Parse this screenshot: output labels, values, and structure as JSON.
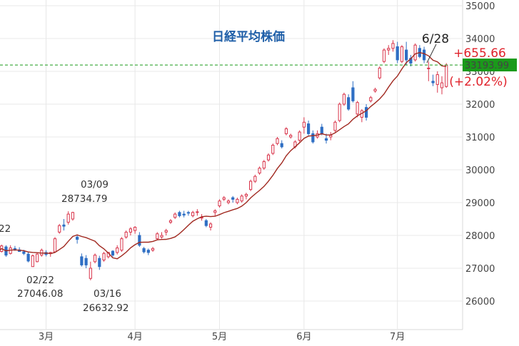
{
  "chart_data": {
    "type": "candlestick",
    "title": "日経平均株価",
    "xlabel": "",
    "ylabel": "",
    "ylim": [
      25100,
      35100
    ],
    "y_ticks": [
      26000,
      27000,
      28000,
      29000,
      30000,
      31000,
      32000,
      33000,
      34000,
      35000
    ],
    "x_ticks": [
      {
        "label": "3月",
        "idx": 11
      },
      {
        "label": "4月",
        "idx": 31
      },
      {
        "label": "5月",
        "idx": 50
      },
      {
        "label": "6月",
        "idx": 69
      },
      {
        "label": "7月",
        "idx": 90
      }
    ],
    "grid": true,
    "colors": {
      "up": "#d9354b",
      "down": "#2f6fc4",
      "ma": "#a0281f",
      "title": "#1f5fa8",
      "ref_line": "#1a9a1a",
      "change": "#e0222b"
    },
    "last_close": "33193.99",
    "last_date_label": "6/28",
    "change": "+655.66",
    "change_pct": "(+2.02%)",
    "annotations": [
      {
        "date": "03/09",
        "value": "28734.79"
      },
      {
        "date": "02/22",
        "value": "27046.08"
      },
      {
        "date": "03/16",
        "value": "26632.92"
      },
      {
        "date": "",
        "value": "22"
      }
    ],
    "candles": [
      [
        27460,
        27570,
        27400,
        27510
      ],
      [
        27510,
        27720,
        27480,
        27680
      ],
      [
        27650,
        27700,
        27350,
        27400
      ],
      [
        27450,
        27700,
        27420,
        27620
      ],
      [
        27600,
        27680,
        27530,
        27580
      ],
      [
        27560,
        27640,
        27500,
        27510
      ],
      [
        27500,
        27560,
        27400,
        27450
      ],
      [
        27430,
        27500,
        27180,
        27220
      ],
      [
        27050,
        27420,
        27046,
        27380
      ],
      [
        27200,
        27480,
        27180,
        27430
      ],
      [
        27400,
        27600,
        27350,
        27550
      ],
      [
        27480,
        27550,
        27360,
        27420
      ],
      [
        27450,
        27500,
        27350,
        27480
      ],
      [
        27500,
        27950,
        27480,
        27900
      ],
      [
        28100,
        28350,
        28050,
        28300
      ],
      [
        28320,
        28500,
        28150,
        28280
      ],
      [
        28400,
        28735,
        28330,
        28650
      ],
      [
        28500,
        28720,
        28450,
        28700
      ],
      [
        27950,
        28000,
        27750,
        27880
      ],
      [
        27350,
        27450,
        27050,
        27100
      ],
      [
        27300,
        27400,
        27000,
        27100
      ],
      [
        26690,
        27200,
        26633,
        27000
      ],
      [
        27200,
        27450,
        27150,
        27400
      ],
      [
        27300,
        27380,
        26950,
        27050
      ],
      [
        27250,
        27500,
        27200,
        27450
      ],
      [
        27350,
        27500,
        27300,
        27480
      ],
      [
        27520,
        27550,
        27350,
        27400
      ],
      [
        27480,
        27700,
        27420,
        27620
      ],
      [
        27550,
        27950,
        27500,
        27900
      ],
      [
        27950,
        28150,
        27900,
        28100
      ],
      [
        28100,
        28250,
        28000,
        28200
      ],
      [
        28150,
        28280,
        28050,
        28250
      ],
      [
        28000,
        28100,
        27650,
        27700
      ],
      [
        27600,
        27650,
        27450,
        27500
      ],
      [
        27550,
        27600,
        27400,
        27480
      ],
      [
        27550,
        27650,
        27500,
        27600
      ],
      [
        27900,
        28100,
        27850,
        28050
      ],
      [
        27950,
        28100,
        27900,
        28000
      ],
      [
        28100,
        28200,
        28000,
        28150
      ],
      [
        28400,
        28500,
        28350,
        28450
      ],
      [
        28550,
        28700,
        28500,
        28650
      ],
      [
        28700,
        28750,
        28550,
        28600
      ],
      [
        28650,
        28750,
        28550,
        28620
      ],
      [
        28700,
        28750,
        28600,
        28680
      ],
      [
        28600,
        28750,
        28550,
        28700
      ],
      [
        28700,
        28800,
        28600,
        28720
      ],
      [
        28550,
        28650,
        28450,
        28550
      ],
      [
        28450,
        28500,
        28250,
        28300
      ],
      [
        28250,
        28400,
        28150,
        28350
      ],
      [
        28700,
        28800,
        28600,
        28750
      ],
      [
        28900,
        29100,
        28850,
        29050
      ],
      [
        29100,
        29200,
        29050,
        29150
      ],
      [
        29000,
        29100,
        28950,
        29050
      ],
      [
        29150,
        29200,
        29000,
        29100
      ],
      [
        29000,
        29150,
        28950,
        29100
      ],
      [
        29050,
        29250,
        29000,
        29200
      ],
      [
        29200,
        29300,
        29100,
        29250
      ],
      [
        29400,
        29700,
        29350,
        29650
      ],
      [
        29650,
        29850,
        29600,
        29800
      ],
      [
        29900,
        30100,
        29850,
        30050
      ],
      [
        30050,
        30300,
        30000,
        30250
      ],
      [
        30300,
        30500,
        30250,
        30450
      ],
      [
        30500,
        30800,
        30450,
        30750
      ],
      [
        30800,
        31000,
        30750,
        30950
      ],
      [
        30800,
        30900,
        30650,
        30700
      ],
      [
        31100,
        31300,
        31050,
        31250
      ],
      [
        31000,
        31100,
        30950,
        31050
      ],
      [
        30700,
        30900,
        30650,
        30850
      ],
      [
        30900,
        31200,
        30850,
        31150
      ],
      [
        31300,
        31600,
        31100,
        31450
      ],
      [
        31400,
        31500,
        31050,
        31100
      ],
      [
        31100,
        31200,
        30800,
        30850
      ],
      [
        31000,
        31200,
        30950,
        31100
      ],
      [
        31300,
        31400,
        31050,
        31100
      ],
      [
        30950,
        31100,
        30800,
        30900
      ],
      [
        31000,
        31150,
        30900,
        31050
      ],
      [
        31200,
        31500,
        31150,
        31450
      ],
      [
        31500,
        32050,
        31450,
        32000
      ],
      [
        32000,
        32350,
        31950,
        32300
      ],
      [
        32200,
        32300,
        31800,
        31850
      ],
      [
        32500,
        32700,
        32050,
        32100
      ],
      [
        31700,
        32100,
        31600,
        32050
      ],
      [
        31600,
        31850,
        31450,
        31800
      ],
      [
        31900,
        32000,
        31500,
        31600
      ],
      [
        32100,
        32250,
        32050,
        32200
      ],
      [
        32400,
        32500,
        32350,
        32450
      ],
      [
        32800,
        33150,
        32750,
        33100
      ],
      [
        33300,
        33700,
        33250,
        33650
      ],
      [
        33650,
        33800,
        33500,
        33700
      ],
      [
        33700,
        33950,
        33600,
        33850
      ],
      [
        33750,
        33900,
        33250,
        33350
      ],
      [
        33300,
        33800,
        33250,
        33750
      ],
      [
        33650,
        33900,
        33200,
        33350
      ],
      [
        33400,
        33500,
        33150,
        33250
      ],
      [
        33350,
        33850,
        33300,
        33800
      ],
      [
        33700,
        33800,
        33400,
        33450
      ],
      [
        33650,
        33750,
        33250,
        33350
      ],
      [
        33100,
        33300,
        32700,
        33100
      ],
      [
        32700,
        32900,
        32550,
        32650
      ],
      [
        32600,
        33000,
        32350,
        32900
      ],
      [
        32500,
        32850,
        32300,
        32650
      ],
      [
        32538,
        33250,
        32500,
        33194
      ]
    ]
  }
}
